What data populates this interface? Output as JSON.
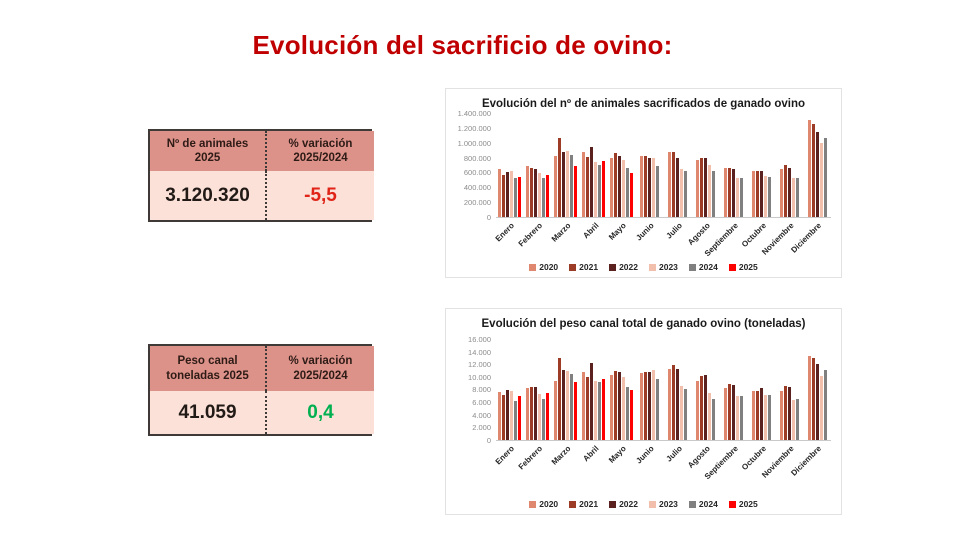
{
  "page_title": "Evolución del sacrificio de ovino:",
  "colors": {
    "title_red": "#c00000",
    "table_header_bg": "#dc9189",
    "table_body_bg": "#fbe1d8",
    "negative_red": "#e02418",
    "positive_green": "#00b050",
    "value_dark": "#221a16"
  },
  "tables": [
    {
      "header": [
        "Nº de animales 2025",
        "% variación 2025/2024"
      ],
      "values": [
        "3.120.320",
        "-5,5"
      ],
      "value_colors": [
        "#221a16",
        "#e02418"
      ]
    },
    {
      "header": [
        "Peso canal toneladas 2025",
        "% variación 2025/2024"
      ],
      "values": [
        "41.059",
        "0,4"
      ],
      "value_colors": [
        "#221a16",
        "#00b050"
      ]
    }
  ],
  "chart_data": [
    {
      "type": "bar",
      "title": "Evolución del nº de animales sacrificados de ganado ovino",
      "categories": [
        "Enero",
        "Febrero",
        "Marzo",
        "Abril",
        "Mayo",
        "Junio",
        "Julio",
        "Agosto",
        "Septiembre",
        "Octubre",
        "Noviembre",
        "Diciembre"
      ],
      "ylim": [
        0,
        1400000
      ],
      "y_ticks": [
        "0",
        "200.000",
        "400.000",
        "600.000",
        "800.000",
        "1.000.000",
        "1.200.000",
        "1.400.000"
      ],
      "grid": false,
      "legend_position": "bottom",
      "series": [
        {
          "name": "2020",
          "color": "#e0876f",
          "values": [
            650000,
            685000,
            825000,
            875000,
            800000,
            825000,
            870000,
            760000,
            665000,
            615000,
            645000,
            1300000
          ]
        },
        {
          "name": "2021",
          "color": "#9c3b26",
          "values": [
            570000,
            665000,
            1065000,
            805000,
            860000,
            820000,
            880000,
            800000,
            665000,
            620000,
            700000,
            1245000
          ]
        },
        {
          "name": "2022",
          "color": "#5a211e",
          "values": [
            605000,
            650000,
            880000,
            940000,
            820000,
            790000,
            800000,
            790000,
            640000,
            625000,
            665000,
            1150000
          ]
        },
        {
          "name": "2023",
          "color": "#f2bfac",
          "values": [
            625000,
            590000,
            885000,
            745000,
            760000,
            790000,
            640000,
            700000,
            530000,
            545000,
            530000,
            990000
          ]
        },
        {
          "name": "2024",
          "color": "#808080",
          "values": [
            520000,
            525000,
            840000,
            705000,
            665000,
            685000,
            625000,
            620000,
            530000,
            540000,
            530000,
            1065000
          ]
        },
        {
          "name": "2025",
          "color": "#fe0000",
          "values": [
            540000,
            560000,
            680000,
            750000,
            595000,
            null,
            null,
            null,
            null,
            null,
            null,
            null
          ]
        }
      ]
    },
    {
      "type": "bar",
      "title": "Evolución del peso canal total de ganado ovino (toneladas)",
      "categories": [
        "Enero",
        "Febrero",
        "Marzo",
        "Abril",
        "Mayo",
        "Junio",
        "Julio",
        "Agosto",
        "Septiembre",
        "Octubre",
        "Noviembre",
        "Diciembre"
      ],
      "ylim": [
        0,
        16000
      ],
      "y_ticks": [
        "0",
        "2.000",
        "4.000",
        "6.000",
        "8.000",
        "10.000",
        "12.000",
        "14.000",
        "16.000"
      ],
      "grid": false,
      "legend_position": "bottom",
      "series": [
        {
          "name": "2020",
          "color": "#e0876f",
          "values": [
            7600,
            8300,
            9300,
            10700,
            10300,
            10600,
            11300,
            9400,
            8300,
            7800,
            7700,
            13300
          ]
        },
        {
          "name": "2021",
          "color": "#9c3b26",
          "values": [
            7200,
            8400,
            13000,
            10000,
            10900,
            10700,
            11800,
            10100,
            8800,
            7700,
            8500,
            13000
          ]
        },
        {
          "name": "2022",
          "color": "#5a211e",
          "values": [
            7900,
            8400,
            11100,
            12200,
            10800,
            10700,
            11300,
            10300,
            8700,
            8200,
            8400,
            12000
          ]
        },
        {
          "name": "2023",
          "color": "#f2bfac",
          "values": [
            7800,
            7300,
            11000,
            9400,
            9900,
            11100,
            8500,
            7400,
            7000,
            7100,
            6400,
            10100
          ]
        },
        {
          "name": "2024",
          "color": "#808080",
          "values": [
            6200,
            6500,
            10500,
            9200,
            8400,
            9600,
            8000,
            6500,
            7000,
            7100,
            6500,
            11100
          ]
        },
        {
          "name": "2025",
          "color": "#fe0000",
          "values": [
            6900,
            7500,
            9200,
            9600,
            7900,
            null,
            null,
            null,
            null,
            null,
            null,
            null
          ]
        }
      ]
    }
  ]
}
